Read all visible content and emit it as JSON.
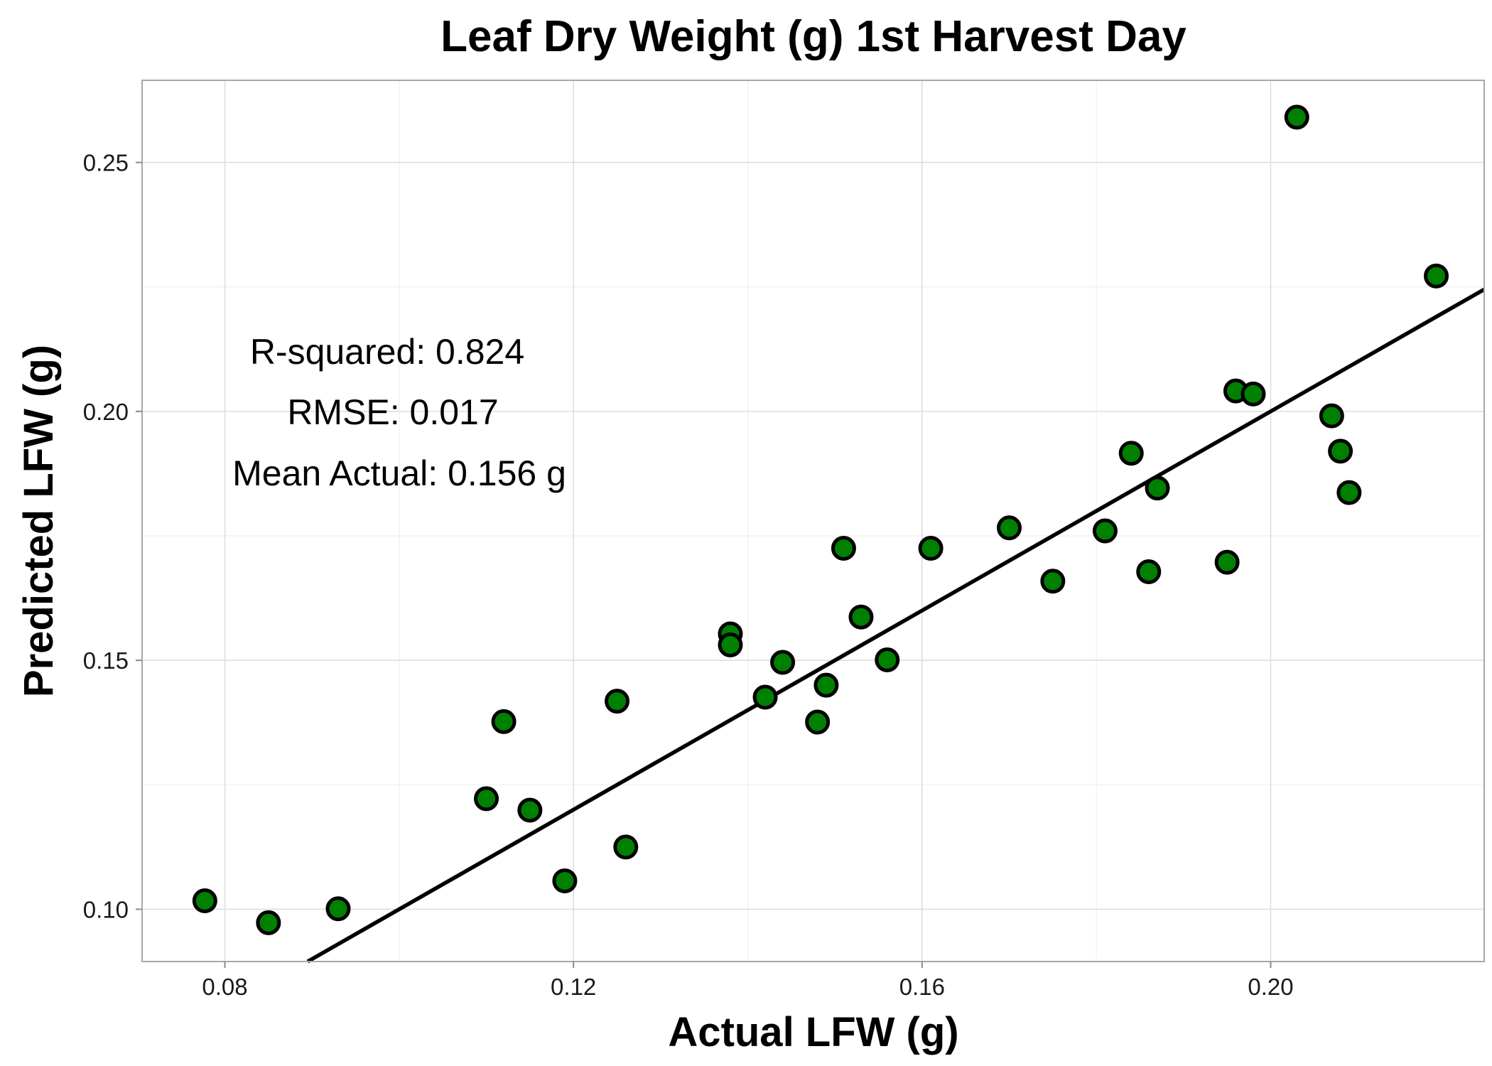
{
  "chart_data": {
    "type": "scatter",
    "title": "Leaf Dry Weight (g) 1st Harvest Day",
    "xlabel": "Actual LFW (g)",
    "ylabel": "Predicted LFW (g)",
    "xlim": [
      0.0705,
      0.2245
    ],
    "ylim": [
      0.0895,
      0.2665
    ],
    "x_ticks": [
      0.08,
      0.12,
      0.16,
      0.2
    ],
    "x_tick_labels": [
      "0.08",
      "0.12",
      "0.16",
      "0.20"
    ],
    "x_minor_ticks": [
      0.1,
      0.14,
      0.18
    ],
    "y_ticks": [
      0.1,
      0.15,
      0.2,
      0.25
    ],
    "y_tick_labels": [
      "0.10",
      "0.15",
      "0.20",
      "0.25"
    ],
    "y_minor_ticks": [
      0.125,
      0.175,
      0.225
    ],
    "grid": true,
    "legend": "none",
    "colors": {
      "point_fill": "#008000",
      "point_edge": "#000000",
      "fit_line": "#000000"
    },
    "fit_line": {
      "slope": 1.0,
      "intercept": 0.0
    },
    "annotations": [
      "R-squared:  0.824",
      "RMSE:  0.017",
      "Mean Actual:  0.156 g"
    ],
    "points": [
      {
        "x": 0.0777,
        "y": 0.1017
      },
      {
        "x": 0.085,
        "y": 0.0973
      },
      {
        "x": 0.093,
        "y": 0.1001
      },
      {
        "x": 0.11,
        "y": 0.1222
      },
      {
        "x": 0.112,
        "y": 0.1377
      },
      {
        "x": 0.115,
        "y": 0.1199
      },
      {
        "x": 0.119,
        "y": 0.1057
      },
      {
        "x": 0.125,
        "y": 0.1418
      },
      {
        "x": 0.126,
        "y": 0.1125
      },
      {
        "x": 0.138,
        "y": 0.1553
      },
      {
        "x": 0.138,
        "y": 0.1531
      },
      {
        "x": 0.142,
        "y": 0.1426
      },
      {
        "x": 0.144,
        "y": 0.1496
      },
      {
        "x": 0.148,
        "y": 0.1376
      },
      {
        "x": 0.149,
        "y": 0.145
      },
      {
        "x": 0.151,
        "y": 0.1725
      },
      {
        "x": 0.153,
        "y": 0.1587
      },
      {
        "x": 0.156,
        "y": 0.1501
      },
      {
        "x": 0.161,
        "y": 0.1725
      },
      {
        "x": 0.17,
        "y": 0.1766
      },
      {
        "x": 0.175,
        "y": 0.1659
      },
      {
        "x": 0.181,
        "y": 0.176
      },
      {
        "x": 0.184,
        "y": 0.1916
      },
      {
        "x": 0.186,
        "y": 0.1678
      },
      {
        "x": 0.187,
        "y": 0.1846
      },
      {
        "x": 0.195,
        "y": 0.1697
      },
      {
        "x": 0.196,
        "y": 0.2041
      },
      {
        "x": 0.198,
        "y": 0.2035
      },
      {
        "x": 0.203,
        "y": 0.2591
      },
      {
        "x": 0.207,
        "y": 0.1991
      },
      {
        "x": 0.208,
        "y": 0.192
      },
      {
        "x": 0.209,
        "y": 0.1837
      },
      {
        "x": 0.219,
        "y": 0.2272
      }
    ]
  }
}
